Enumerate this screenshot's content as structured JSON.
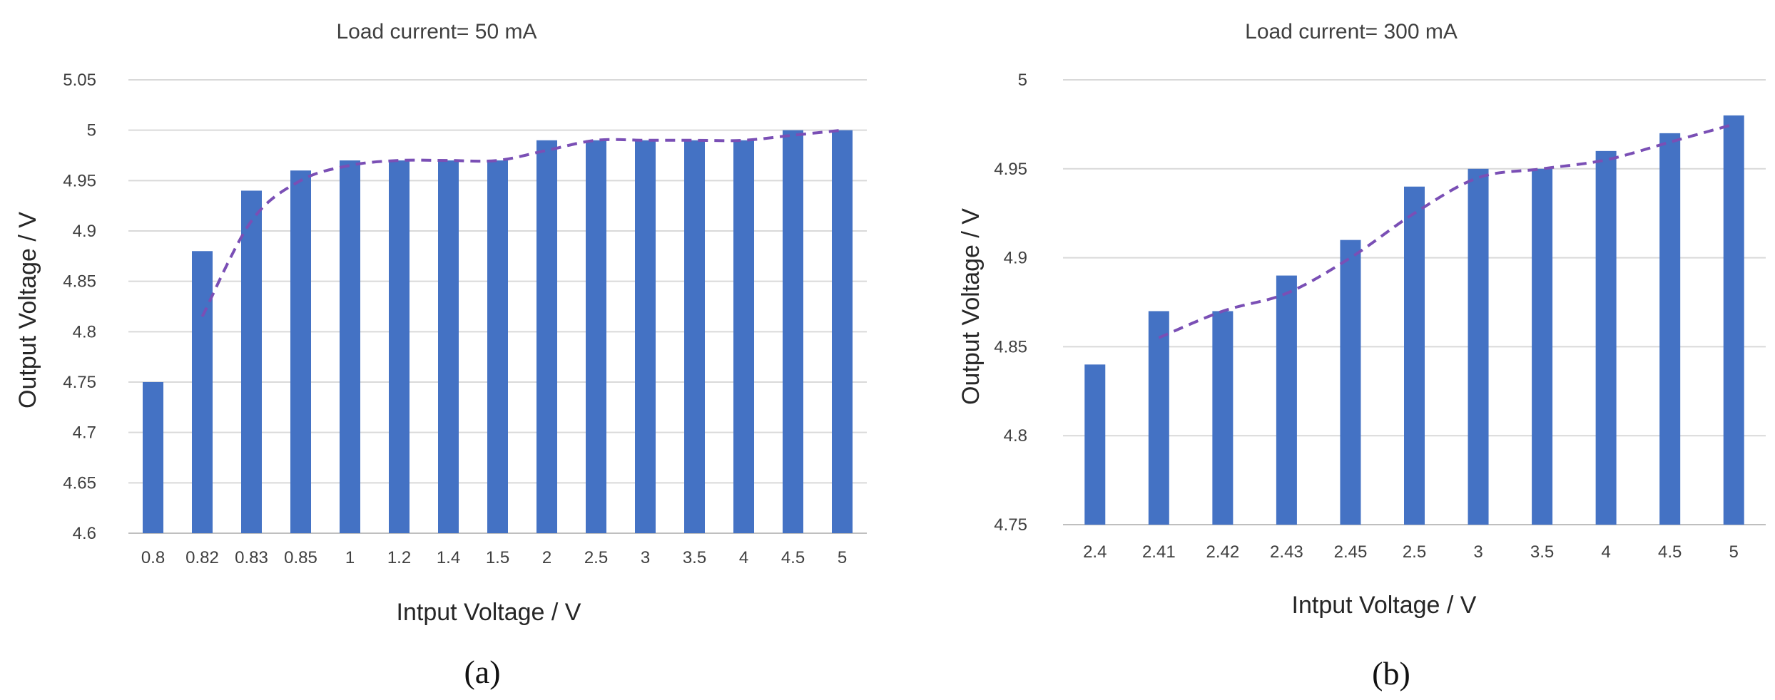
{
  "chart_data": [
    {
      "id": "a",
      "type": "bar",
      "title": "Load current= 50 mA",
      "xlabel": "Intput Voltage / V",
      "ylabel": "Output Voltage / V",
      "caption": "(a)",
      "categories": [
        "0.8",
        "0.82",
        "0.83",
        "0.85",
        "1",
        "1.2",
        "1.4",
        "1.5",
        "2",
        "2.5",
        "3",
        "3.5",
        "4",
        "4.5",
        "5"
      ],
      "values": [
        4.75,
        4.88,
        4.94,
        4.96,
        4.97,
        4.97,
        4.97,
        4.97,
        4.99,
        4.99,
        4.99,
        4.99,
        4.99,
        5.0,
        5.0
      ],
      "yticks": [
        "4.6",
        "4.65",
        "4.7",
        "4.75",
        "4.8",
        "4.85",
        "4.9",
        "4.95",
        "5",
        "5.05"
      ],
      "ylim": [
        4.6,
        5.05
      ],
      "grid": true,
      "trendline": "dashed moving average (period 2)"
    },
    {
      "id": "b",
      "type": "bar",
      "title": "Load current= 300 mA",
      "xlabel": "Intput Voltage / V",
      "ylabel": "Output Voltage / V",
      "caption": "(b)",
      "categories": [
        "2.4",
        "2.41",
        "2.42",
        "2.43",
        "2.45",
        "2.5",
        "3",
        "3.5",
        "4",
        "4.5",
        "5"
      ],
      "values": [
        4.84,
        4.87,
        4.87,
        4.89,
        4.91,
        4.94,
        4.95,
        4.95,
        4.96,
        4.97,
        4.98
      ],
      "yticks": [
        "4.75",
        "4.8",
        "4.85",
        "4.9",
        "4.95",
        "5"
      ],
      "ylim": [
        4.75,
        5.0
      ],
      "grid": true,
      "trendline": "dashed moving average (period 2)"
    }
  ],
  "colors": {
    "bar": "#4472c4",
    "trend": "#7a4fb5",
    "grid": "#d9d9d9"
  }
}
